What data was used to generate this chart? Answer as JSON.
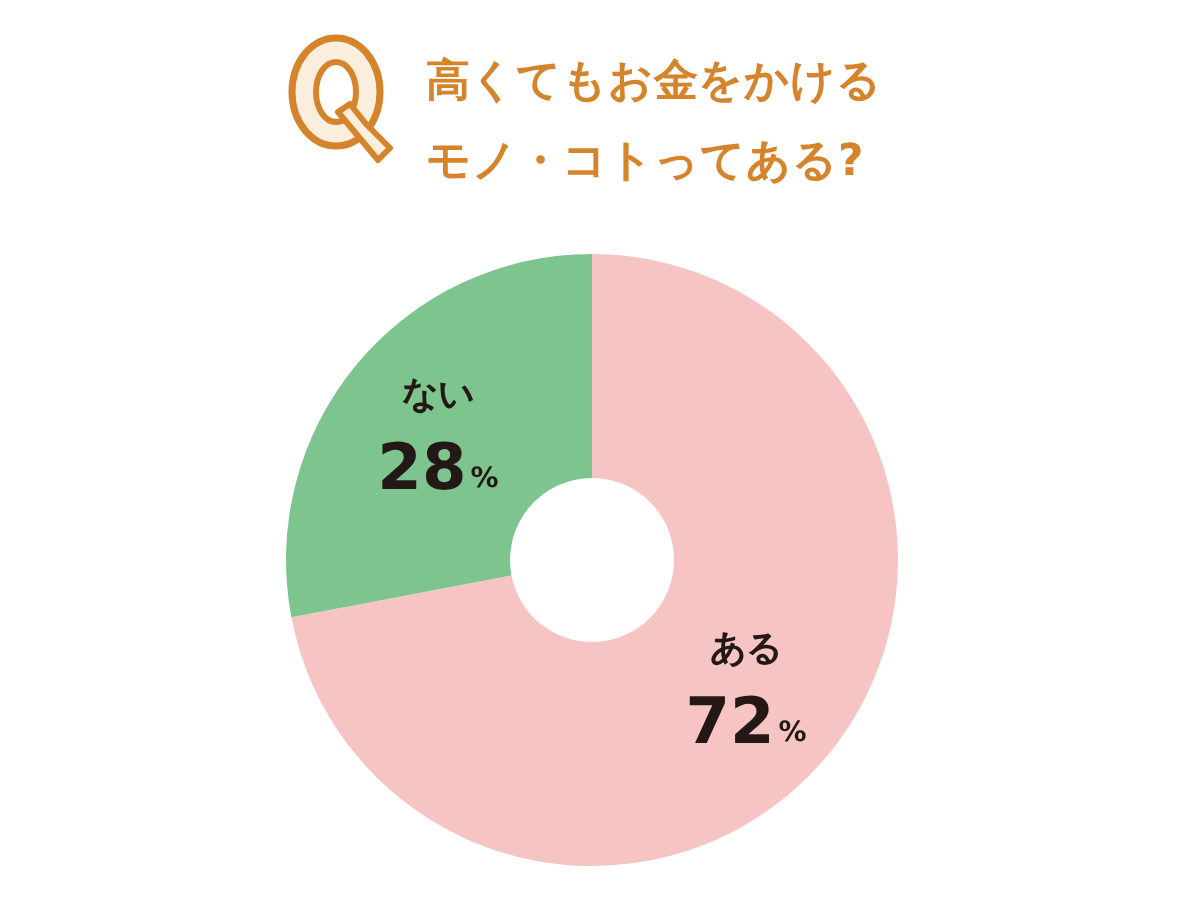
{
  "chart_data": {
    "type": "donut",
    "title": "高くてもお金をかけるモノ・コトってある?",
    "categories": [
      "ある",
      "ない"
    ],
    "values": [
      72,
      28
    ],
    "colors": [
      "#f7c4c4",
      "#7dc48e"
    ],
    "value_labels": [
      "72%",
      "28%"
    ]
  }
}
